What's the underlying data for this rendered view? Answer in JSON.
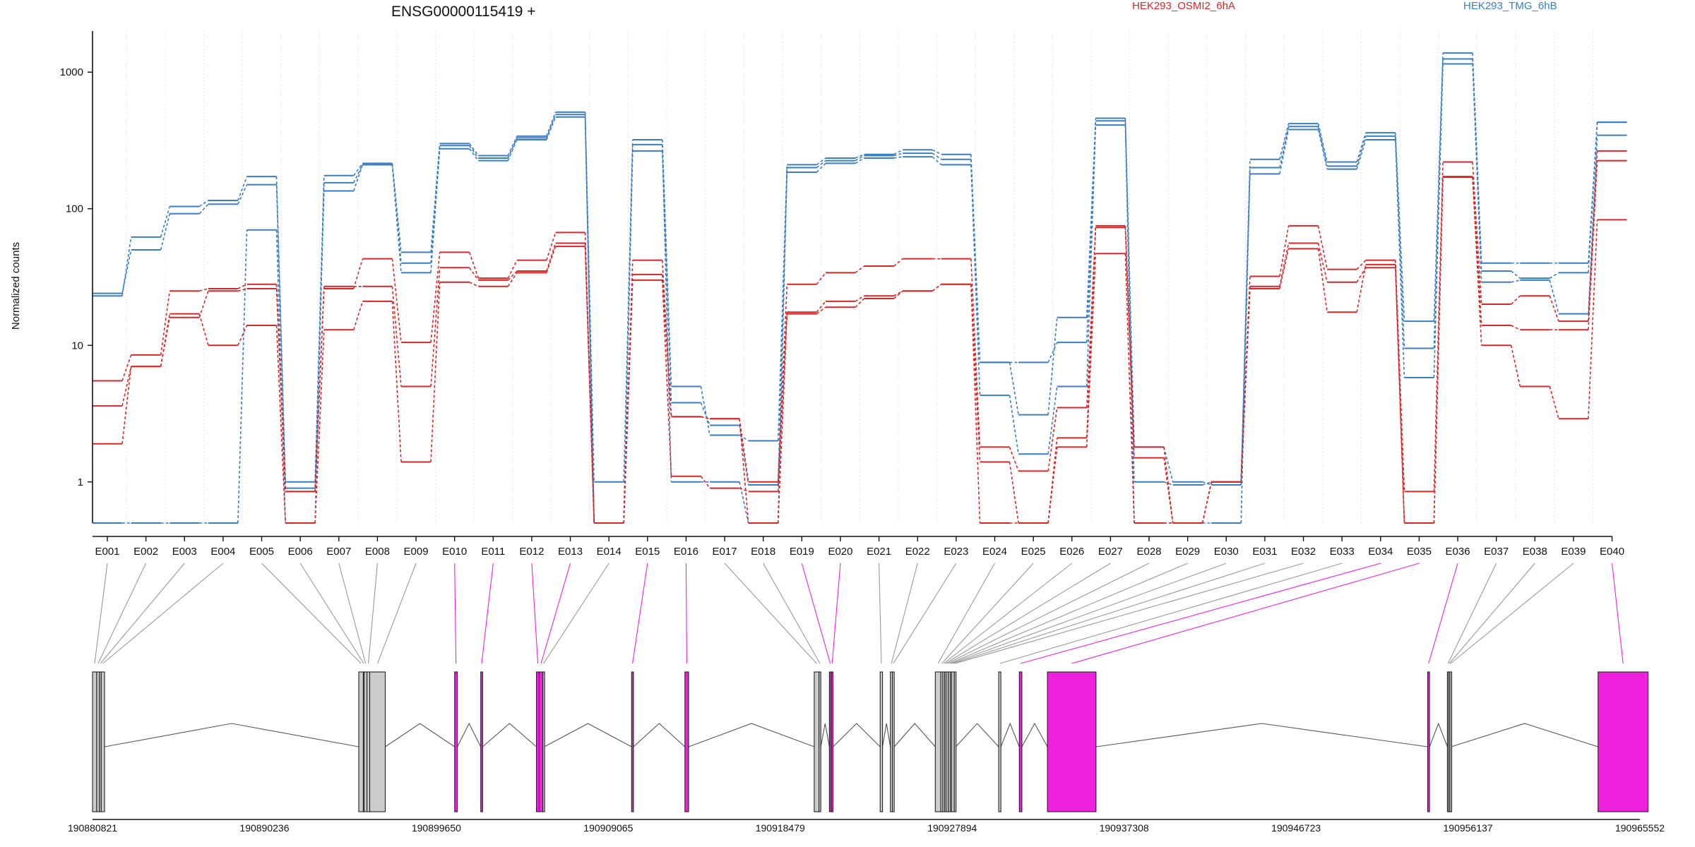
{
  "chart_data": {
    "type": "line",
    "title": "ENSG00000115419 +",
    "ylabel": "Normalized counts",
    "yscale": "log",
    "ylim": [
      0.5,
      2000
    ],
    "yticks": [
      {
        "value": 1,
        "label": "1"
      },
      {
        "value": 10,
        "label": "10"
      },
      {
        "value": 100,
        "label": "100"
      },
      {
        "value": 1000,
        "label": "1000"
      }
    ],
    "vertical_grid": true,
    "legend": {
      "placement": "top",
      "entries": [
        "HEK293_OSMI2_6hA",
        "HEK293_TMG_6hB"
      ]
    },
    "colors": {
      "HEK293_OSMI2_6hA": "#d62728",
      "HEK293_TMG_6hB": "#3a7dc2",
      "highlight": "#ee22dd",
      "exon": "#cccccc",
      "link": "#999999"
    },
    "categories": [
      "E001",
      "E002",
      "E003",
      "E004",
      "E005",
      "E006",
      "E007",
      "E008",
      "E009",
      "E010",
      "E011",
      "E012",
      "E013",
      "E014",
      "E015",
      "E016",
      "E017",
      "E018",
      "E019",
      "E020",
      "E021",
      "E022",
      "E023",
      "E024",
      "E025",
      "E026",
      "E027",
      "E028",
      "E029",
      "E030",
      "E031",
      "E032",
      "E033",
      "E034",
      "E035",
      "E036",
      "E037",
      "E038",
      "E039",
      "E040"
    ],
    "highlighted_exons": [
      "E010",
      "E011",
      "E012",
      "E013",
      "E015",
      "E016",
      "E019",
      "E020",
      "E034",
      "E035",
      "E036",
      "E040"
    ],
    "series": [
      {
        "group": "HEK293_TMG_6hB",
        "values": [
          24,
          50,
          92,
          108,
          150,
          0.9,
          135,
          210,
          34,
          275,
          225,
          320,
          470,
          0.5,
          265,
          3.8,
          2.6,
          0.95,
          185,
          215,
          235,
          240,
          210,
          4.3,
          1.6,
          5,
          410,
          1,
          0.95,
          1,
          180,
          380,
          195,
          320,
          5.8,
          1150,
          29,
          30,
          17,
          345
        ]
      },
      {
        "group": "HEK293_TMG_6hB",
        "values": [
          23,
          62,
          104,
          115,
          172,
          1,
          175,
          215,
          48,
          300,
          245,
          340,
          510,
          1,
          320,
          5,
          2.2,
          2,
          210,
          235,
          250,
          270,
          250,
          7.5,
          3.1,
          16,
          460,
          1.8,
          1,
          0.95,
          230,
          420,
          220,
          360,
          15,
          1380,
          40,
          40,
          40,
          430
        ]
      },
      {
        "group": "HEK293_TMG_6hB",
        "values": [
          0.5,
          0.5,
          0.5,
          0.5,
          70,
          0.5,
          155,
          210,
          40,
          290,
          235,
          330,
          490,
          0.5,
          295,
          1,
          1,
          0.5,
          200,
          225,
          245,
          255,
          230,
          7.5,
          7.5,
          10.5,
          440,
          0.5,
          0.5,
          0.5,
          200,
          400,
          205,
          340,
          9.5,
          1250,
          35,
          31,
          34,
          430
        ]
      },
      {
        "group": "HEK293_OSMI2_6hA",
        "values": [
          5.5,
          8.5,
          25,
          26,
          28,
          0.85,
          26,
          43,
          10.5,
          48,
          31,
          42,
          67,
          0.5,
          42,
          3,
          2.9,
          1,
          28,
          34,
          38,
          43,
          43,
          1.8,
          1.2,
          3.5,
          73,
          1.8,
          0.5,
          1,
          32,
          75,
          36,
          42,
          0.85,
          220,
          20,
          23,
          15,
          265
        ]
      },
      {
        "group": "HEK293_OSMI2_6hA",
        "values": [
          3.6,
          7,
          16,
          25,
          26,
          0.85,
          27,
          27,
          5,
          37,
          30,
          35,
          56,
          0.5,
          33,
          3,
          2.9,
          0.5,
          17,
          19,
          22,
          25,
          28,
          1.4,
          0.5,
          2.1,
          75,
          1.5,
          0.5,
          1,
          27,
          56,
          29,
          37,
          0.5,
          170,
          14,
          13,
          13,
          225
        ]
      },
      {
        "group": "HEK293_OSMI2_6hA",
        "values": [
          1.9,
          7,
          17,
          10,
          14,
          0.5,
          13,
          21,
          1.4,
          29,
          27,
          34,
          53,
          0.5,
          30,
          1.1,
          0.9,
          0.85,
          17.5,
          21,
          23,
          25,
          28,
          0.5,
          0.5,
          1.8,
          47,
          0.5,
          0.5,
          1,
          26,
          51,
          17.5,
          39,
          0.5,
          172,
          10,
          5,
          2.9,
          83
        ]
      }
    ],
    "gene_model": {
      "coordinates": [
        "190880821",
        "190890236",
        "190899650",
        "190909065",
        "190918479",
        "190927894",
        "190937308",
        "190946723",
        "190956137",
        "190965552"
      ],
      "exons": [
        {
          "id": "E001",
          "start": 190880821,
          "end": 190881050
        },
        {
          "id": "E002",
          "start": 190881050,
          "end": 190881200
        },
        {
          "id": "E003",
          "start": 190881200,
          "end": 190881300
        },
        {
          "id": "E004",
          "start": 190881300,
          "end": 190881480
        },
        {
          "id": "E005",
          "start": 190895400,
          "end": 190895650
        },
        {
          "id": "E006",
          "start": 190895650,
          "end": 190895700
        },
        {
          "id": "E007",
          "start": 190895700,
          "end": 190895850
        },
        {
          "id": "E008",
          "start": 190895850,
          "end": 190896000
        },
        {
          "id": "E009",
          "start": 190896000,
          "end": 190896850
        },
        {
          "id": "E010",
          "start": 190900650,
          "end": 190900800
        },
        {
          "id": "E011",
          "start": 190902080,
          "end": 190902180
        },
        {
          "id": "E012",
          "start": 190905130,
          "end": 190905280
        },
        {
          "id": "E013",
          "start": 190905280,
          "end": 190905480
        },
        {
          "id": "E014",
          "start": 190905480,
          "end": 190905560
        },
        {
          "id": "E015",
          "start": 190910340,
          "end": 190910440
        },
        {
          "id": "E016",
          "start": 190913260,
          "end": 190913460
        },
        {
          "id": "E017",
          "start": 190920340,
          "end": 190920600
        },
        {
          "id": "E018",
          "start": 190920600,
          "end": 190920700
        },
        {
          "id": "E019",
          "start": 190921170,
          "end": 190921270
        },
        {
          "id": "E020",
          "start": 190921270,
          "end": 190921370
        },
        {
          "id": "E021",
          "start": 190923950,
          "end": 190924080
        },
        {
          "id": "E022",
          "start": 190924510,
          "end": 190924620
        },
        {
          "id": "E023",
          "start": 190924620,
          "end": 190924720
        },
        {
          "id": "E024",
          "start": 190926970,
          "end": 190927270
        },
        {
          "id": "E025",
          "start": 190927270,
          "end": 190927380
        },
        {
          "id": "E026",
          "start": 190927380,
          "end": 190927480
        },
        {
          "id": "E027",
          "start": 190927480,
          "end": 190927560
        },
        {
          "id": "E028",
          "start": 190927560,
          "end": 190927680
        },
        {
          "id": "E029",
          "start": 190927680,
          "end": 190927790
        },
        {
          "id": "E030",
          "start": 190927790,
          "end": 190927860
        },
        {
          "id": "E031",
          "start": 190927860,
          "end": 190928010
        },
        {
          "id": "E032",
          "start": 190928010,
          "end": 190928090
        },
        {
          "id": "E033",
          "start": 190930440,
          "end": 190930560
        },
        {
          "id": "E034",
          "start": 190931570,
          "end": 190931710
        },
        {
          "id": "E035",
          "start": 190933110,
          "end": 190935770
        },
        {
          "id": "E036",
          "start": 190953930,
          "end": 190954030
        },
        {
          "id": "E037",
          "start": 190955010,
          "end": 190955080
        },
        {
          "id": "E038",
          "start": 190955080,
          "end": 190955150
        },
        {
          "id": "E039",
          "start": 190955150,
          "end": 190955220
        },
        {
          "id": "E040",
          "start": 190963260,
          "end": 190966000
        }
      ]
    }
  }
}
